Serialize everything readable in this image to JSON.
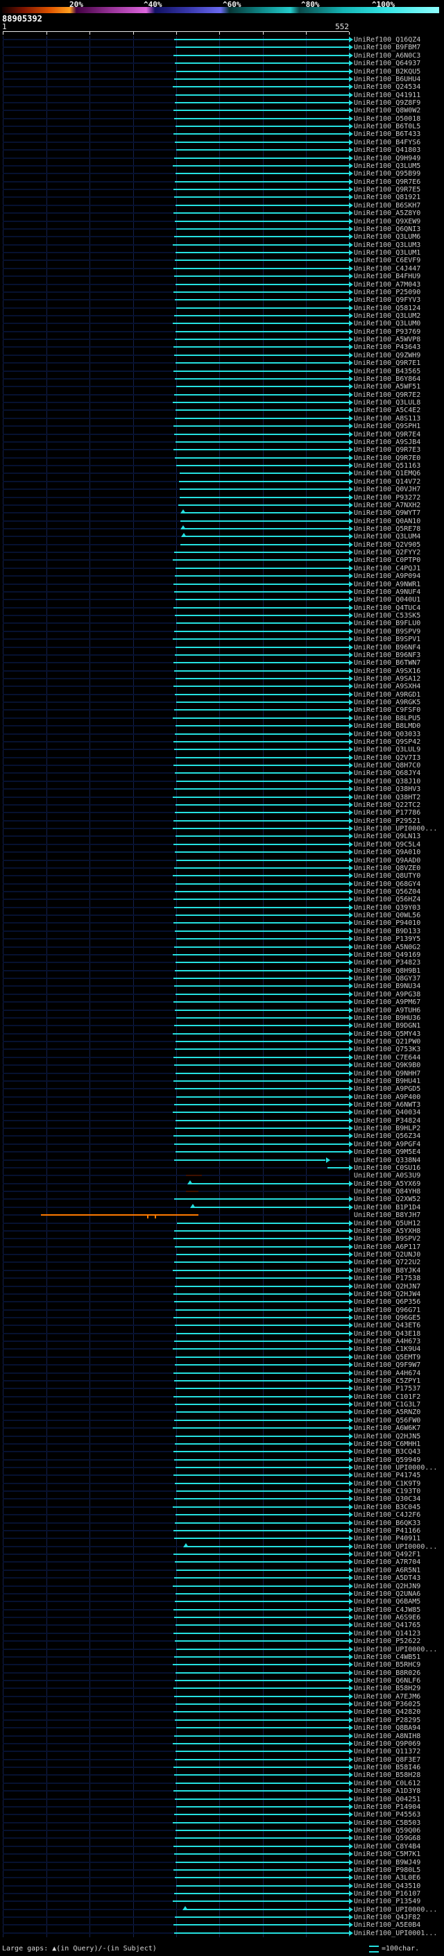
{
  "header": {
    "number": "88905392"
  },
  "legend": {
    "gaps": "Large gaps: ▲(in Query)/-(in Subject)",
    "scale": "=100char."
  },
  "colors": {
    "background": "#000000",
    "hit": "#25e0e0",
    "base_line": "#061130",
    "grid_line": "#13204e",
    "low_identity": "#401000",
    "orange": "#ff7a00",
    "label_text": "#c9c9c9",
    "ruler": "#e8e8e8",
    "legend_text": "#d8d8d8"
  },
  "chart_data": {
    "type": "alignment_overview",
    "title": "",
    "row_prefix": "UniRef100_",
    "x_axis": {
      "start": 1,
      "end": 552,
      "start_label": "1",
      "end_label": "552"
    },
    "identity_scale": {
      "labels": [
        "20%",
        "^40%",
        "^60%",
        "^80%",
        "^100%"
      ],
      "stops": [
        {
          "p": 0,
          "c": "#100000"
        },
        {
          "p": 5,
          "c": "#801500"
        },
        {
          "p": 11,
          "c": "#e05500"
        },
        {
          "p": 15.5,
          "c": "#ffa020"
        },
        {
          "p": 17,
          "c": "#400040"
        },
        {
          "p": 25,
          "c": "#993399"
        },
        {
          "p": 33,
          "c": "#dd66dd"
        },
        {
          "p": 35,
          "c": "#101060"
        },
        {
          "p": 43,
          "c": "#3a3ab0"
        },
        {
          "p": 50,
          "c": "#6a6af0"
        },
        {
          "p": 52,
          "c": "#073535"
        },
        {
          "p": 60,
          "c": "#109090"
        },
        {
          "p": 66,
          "c": "#25cccc"
        },
        {
          "p": 68,
          "c": "#0a4a4a"
        },
        {
          "p": 78,
          "c": "#15b5b5"
        },
        {
          "p": 88,
          "c": "#35e5e5"
        },
        {
          "p": 100,
          "c": "#90ffff"
        }
      ]
    },
    "rows": [
      {
        "l": "Q16QZ4",
        "s": 274
      },
      {
        "l": "B9FBM7",
        "s": 276
      },
      {
        "l": "A6N0C3",
        "s": 273
      },
      {
        "l": "Q64937",
        "s": 275
      },
      {
        "l": "B2KQU5",
        "s": 277
      },
      {
        "l": "B6UHU4",
        "s": 274
      },
      {
        "l": "Q24534",
        "s": 272
      },
      {
        "l": "Q41911",
        "s": 276
      },
      {
        "l": "Q9Z8F9",
        "s": 275
      },
      {
        "l": "Q8W0W2",
        "s": 273
      },
      {
        "l": "O50018",
        "s": 274
      },
      {
        "l": "B6T0L5",
        "s": 276
      },
      {
        "l": "B6T433",
        "s": 273
      },
      {
        "l": "B4FYS6",
        "s": 275
      },
      {
        "l": "Q41803",
        "s": 277
      },
      {
        "l": "Q9H949",
        "s": 274
      },
      {
        "l": "Q3LUM5",
        "s": 272
      },
      {
        "l": "Q95B99",
        "s": 276
      },
      {
        "l": "Q9R7E6",
        "s": 275
      },
      {
        "l": "Q9R7E5",
        "s": 273
      },
      {
        "l": "Q81921",
        "s": 274
      },
      {
        "l": "B6SKH7",
        "s": 276
      },
      {
        "l": "A5Z8Y0",
        "s": 273
      },
      {
        "l": "Q9XEW9",
        "s": 275
      },
      {
        "l": "Q6QNI3",
        "s": 277
      },
      {
        "l": "Q3LUM6",
        "s": 274
      },
      {
        "l": "Q3LUM3",
        "s": 272
      },
      {
        "l": "Q3LUM1",
        "s": 276
      },
      {
        "l": "C6EVF9",
        "s": 275
      },
      {
        "l": "C4J447",
        "s": 273
      },
      {
        "l": "B4FHU9",
        "s": 274
      },
      {
        "l": "A7M043",
        "s": 276
      },
      {
        "l": "P25090",
        "s": 273
      },
      {
        "l": "Q9FYV3",
        "s": 275
      },
      {
        "l": "Q58124",
        "s": 277
      },
      {
        "l": "Q3LUM2",
        "s": 274
      },
      {
        "l": "Q3LUM0",
        "s": 272
      },
      {
        "l": "P93769",
        "s": 276
      },
      {
        "l": "A5WVP8",
        "s": 275
      },
      {
        "l": "P43643",
        "s": 273
      },
      {
        "l": "Q9ZWH9",
        "s": 274
      },
      {
        "l": "Q9R7E1",
        "s": 276
      },
      {
        "l": "B43565",
        "s": 273
      },
      {
        "l": "B6Y864",
        "s": 275
      },
      {
        "l": "A5WF51",
        "s": 277
      },
      {
        "l": "Q9R7E2",
        "s": 274
      },
      {
        "l": "Q3LUL8",
        "s": 272
      },
      {
        "l": "A5C4E2",
        "s": 276
      },
      {
        "l": "A8S113",
        "s": 275
      },
      {
        "l": "Q9SPH1",
        "s": 273
      },
      {
        "l": "Q9R7E4",
        "s": 274
      },
      {
        "l": "A9SJB4",
        "s": 276
      },
      {
        "l": "Q9R7E3",
        "s": 273
      },
      {
        "l": "Q9R7E0",
        "s": 275
      },
      {
        "l": "Q51163",
        "s": 277
      },
      {
        "l": "Q1EMQ6",
        "s": 282
      },
      {
        "l": "Q14V72",
        "s": 281
      },
      {
        "l": "Q0VJH7",
        "s": 283
      },
      {
        "l": "P93272",
        "s": 282
      },
      {
        "l": "A7NXH2",
        "s": 280
      },
      {
        "l": "Q9WYT7",
        "s": 285,
        "m": [
          {
            "q": 288,
            "t": "tri"
          }
        ]
      },
      {
        "l": "Q0AN10",
        "s": 284
      },
      {
        "l": "Q5RE78",
        "s": 285,
        "m": [
          {
            "q": 288,
            "t": "tri"
          }
        ]
      },
      {
        "l": "Q3LUM4",
        "s": 286,
        "m": [
          {
            "q": 289,
            "t": "tri"
          }
        ]
      },
      {
        "l": "Q2V905",
        "s": 284
      },
      {
        "l": "Q2FYY2",
        "s": 274
      },
      {
        "l": "C0PTP0",
        "s": 272
      },
      {
        "l": "C4PQJ1",
        "s": 276
      },
      {
        "l": "A9P094",
        "s": 275
      },
      {
        "l": "A9NWR1",
        "s": 273
      },
      {
        "l": "A9NUF4",
        "s": 274
      },
      {
        "l": "Q040U1",
        "s": 276
      },
      {
        "l": "Q4TUC4",
        "s": 273
      },
      {
        "l": "C53SK5",
        "s": 275
      },
      {
        "l": "B9FLU0",
        "s": 277
      },
      {
        "l": "B9SPV9",
        "s": 274
      },
      {
        "l": "B9SPV1",
        "s": 272
      },
      {
        "l": "B96NF4",
        "s": 276
      },
      {
        "l": "B96NF3",
        "s": 275
      },
      {
        "l": "B6TWN7",
        "s": 273
      },
      {
        "l": "A9SX16",
        "s": 274
      },
      {
        "l": "A9SA12",
        "s": 276
      },
      {
        "l": "A9SXH4",
        "s": 273
      },
      {
        "l": "A9RGD1",
        "s": 275
      },
      {
        "l": "A9RGK5",
        "s": 277
      },
      {
        "l": "C9FSF0",
        "s": 274
      },
      {
        "l": "B8LPU5",
        "s": 272
      },
      {
        "l": "B8LMD0",
        "s": 276
      },
      {
        "l": "Q03033",
        "s": 275
      },
      {
        "l": "Q9SP42",
        "s": 273
      },
      {
        "l": "Q3LUL9",
        "s": 274
      },
      {
        "l": "Q2V7I3",
        "s": 276
      },
      {
        "l": "Q8H7C0",
        "s": 273
      },
      {
        "l": "Q68JY4",
        "s": 275
      },
      {
        "l": "Q38J10",
        "s": 277
      },
      {
        "l": "Q38HV3",
        "s": 274
      },
      {
        "l": "Q38HT2",
        "s": 272
      },
      {
        "l": "Q22TC2",
        "s": 276
      },
      {
        "l": "P17786",
        "s": 275
      },
      {
        "l": "P29521",
        "s": 273
      },
      {
        "l": "UPI0000...",
        "s": 272
      },
      {
        "l": "Q9LN13",
        "s": 276
      },
      {
        "l": "Q9C5L4",
        "s": 273
      },
      {
        "l": "Q9A010",
        "s": 275
      },
      {
        "l": "Q9AAD0",
        "s": 277
      },
      {
        "l": "Q8VZE0",
        "s": 274
      },
      {
        "l": "Q8UTY0",
        "s": 272
      },
      {
        "l": "Q68GY4",
        "s": 276
      },
      {
        "l": "Q56Z04",
        "s": 275
      },
      {
        "l": "Q56HZ4",
        "s": 273
      },
      {
        "l": "Q39Y03",
        "s": 274
      },
      {
        "l": "Q0WL56",
        "s": 276
      },
      {
        "l": "P94010",
        "s": 273
      },
      {
        "l": "B9D133",
        "s": 275
      },
      {
        "l": "P139Y5",
        "s": 277
      },
      {
        "l": "A5N0G2",
        "s": 274
      },
      {
        "l": "Q49169",
        "s": 272
      },
      {
        "l": "P34823",
        "s": 276
      },
      {
        "l": "Q8H9B1",
        "s": 275
      },
      {
        "l": "Q8GY37",
        "s": 273
      },
      {
        "l": "B9NU34",
        "s": 274
      },
      {
        "l": "A9PG38",
        "s": 276
      },
      {
        "l": "A9PM67",
        "s": 273
      },
      {
        "l": "A9TUH6",
        "s": 275
      },
      {
        "l": "B9HU36",
        "s": 277
      },
      {
        "l": "B9DGN1",
        "s": 274
      },
      {
        "l": "Q5MY43",
        "s": 272
      },
      {
        "l": "Q21PW0",
        "s": 276
      },
      {
        "l": "Q753K3",
        "s": 275
      },
      {
        "l": "C7E644",
        "s": 273
      },
      {
        "l": "Q9K9B0",
        "s": 274
      },
      {
        "l": "Q9NHH7",
        "s": 276
      },
      {
        "l": "B9HU41",
        "s": 273
      },
      {
        "l": "A9PGD5",
        "s": 275
      },
      {
        "l": "A9P400",
        "s": 277
      },
      {
        "l": "A6NWT3",
        "s": 274
      },
      {
        "l": "Q40034",
        "s": 272
      },
      {
        "l": "P34824",
        "s": 276
      },
      {
        "l": "B9HLP2",
        "s": 275
      },
      {
        "l": "Q56Z34",
        "s": 273
      },
      {
        "l": "A9PGF4",
        "s": 274
      },
      {
        "l": "Q9M5E4",
        "s": 276
      },
      {
        "l": "Q338N4",
        "s": 274,
        "e": 515
      },
      {
        "l": "C0SU16",
        "s": 518
      },
      {
        "l": "A0S3U9",
        "s": 292,
        "e": 318,
        "c": "#401000",
        "a": false
      },
      {
        "l": "A5YX69",
        "s": 296,
        "m": [
          {
            "q": 299,
            "t": "tri"
          }
        ]
      },
      {
        "l": "Q84YH8",
        "s": 292,
        "e": 312,
        "c": "#401000",
        "a": false
      },
      {
        "l": "Q2XW52",
        "s": 274
      },
      {
        "l": "B1P1D4",
        "s": 300,
        "m": [
          {
            "q": 303,
            "t": "tri"
          }
        ]
      },
      {
        "l": "B8YJH7",
        "s": 62,
        "e": 312,
        "c": "#ff7a00",
        "a": false,
        "m": [
          {
            "q": 232,
            "t": "dash"
          },
          {
            "q": 244,
            "t": "dash"
          }
        ]
      },
      {
        "l": "Q5UH12",
        "s": 278
      },
      {
        "l": "A5YXH8",
        "s": 274
      },
      {
        "l": "B9SPV2",
        "s": 273
      },
      {
        "l": "A6P117",
        "s": 275
      },
      {
        "l": "Q2UNJ0",
        "s": 277
      },
      {
        "l": "Q722U2",
        "s": 274
      },
      {
        "l": "B8YJK4",
        "s": 272
      },
      {
        "l": "P17538",
        "s": 276
      },
      {
        "l": "Q2HJN7",
        "s": 275
      },
      {
        "l": "Q2HJW4",
        "s": 273
      },
      {
        "l": "Q6P356",
        "s": 274
      },
      {
        "l": "Q96G71",
        "s": 276
      },
      {
        "l": "Q96GE5",
        "s": 273
      },
      {
        "l": "Q43ET6",
        "s": 275
      },
      {
        "l": "Q43E18",
        "s": 277
      },
      {
        "l": "A4H673",
        "s": 274
      },
      {
        "l": "C1K9U4",
        "s": 272
      },
      {
        "l": "Q5EMT9",
        "s": 276
      },
      {
        "l": "Q9F9W7",
        "s": 275
      },
      {
        "l": "A4H674",
        "s": 273
      },
      {
        "l": "C5ZPY1",
        "s": 274
      },
      {
        "l": "P17537",
        "s": 276
      },
      {
        "l": "C101F2",
        "s": 273
      },
      {
        "l": "C1G3L7",
        "s": 275
      },
      {
        "l": "A5RNZ0",
        "s": 277
      },
      {
        "l": "Q56FW0",
        "s": 274
      },
      {
        "l": "A6W6K7",
        "s": 272
      },
      {
        "l": "Q2HJN5",
        "s": 276
      },
      {
        "l": "C6MHH1",
        "s": 275
      },
      {
        "l": "B3CQ43",
        "s": 273
      },
      {
        "l": "Q59949",
        "s": 274
      },
      {
        "l": "UPI0000...",
        "s": 276
      },
      {
        "l": "P41745",
        "s": 273
      },
      {
        "l": "C1K9T9",
        "s": 275
      },
      {
        "l": "C193T0",
        "s": 277
      },
      {
        "l": "Q30C34",
        "s": 274
      },
      {
        "l": "B3C045",
        "s": 272
      },
      {
        "l": "C4J2F6",
        "s": 276
      },
      {
        "l": "B6QK33",
        "s": 275
      },
      {
        "l": "P41166",
        "s": 273
      },
      {
        "l": "P40911",
        "s": 274
      },
      {
        "l": "UPI0000...",
        "s": 290,
        "m": [
          {
            "q": 293,
            "t": "tri"
          }
        ]
      },
      {
        "l": "Q492F1",
        "s": 273
      },
      {
        "l": "A7R704",
        "s": 275
      },
      {
        "l": "A6R5N1",
        "s": 277
      },
      {
        "l": "A5DT43",
        "s": 274
      },
      {
        "l": "Q2HJN9",
        "s": 272
      },
      {
        "l": "Q2UNA6",
        "s": 276
      },
      {
        "l": "Q6BAM5",
        "s": 275
      },
      {
        "l": "C4JW85",
        "s": 273
      },
      {
        "l": "A6S9E6",
        "s": 274
      },
      {
        "l": "Q41765",
        "s": 276
      },
      {
        "l": "Q14123",
        "s": 273
      },
      {
        "l": "P52622",
        "s": 275
      },
      {
        "l": "UPI0000...",
        "s": 277
      },
      {
        "l": "C4WB51",
        "s": 274
      },
      {
        "l": "B5RHC9",
        "s": 272
      },
      {
        "l": "B8R026",
        "s": 276
      },
      {
        "l": "Q6NLF6",
        "s": 275
      },
      {
        "l": "B58H29",
        "s": 273
      },
      {
        "l": "A7EJM6",
        "s": 274
      },
      {
        "l": "P36025",
        "s": 276
      },
      {
        "l": "Q42820",
        "s": 273
      },
      {
        "l": "P28295",
        "s": 275
      },
      {
        "l": "Q8BA94",
        "s": 277
      },
      {
        "l": "A8NIH8",
        "s": 274
      },
      {
        "l": "Q9P069",
        "s": 272
      },
      {
        "l": "Q11372",
        "s": 276
      },
      {
        "l": "Q8F3E7",
        "s": 275
      },
      {
        "l": "B58I46",
        "s": 273
      },
      {
        "l": "B58H28",
        "s": 274
      },
      {
        "l": "C0L612",
        "s": 276
      },
      {
        "l": "A1D3Y8",
        "s": 273
      },
      {
        "l": "Q04251",
        "s": 275
      },
      {
        "l": "P14904",
        "s": 277
      },
      {
        "l": "P45563",
        "s": 274
      },
      {
        "l": "C5B503",
        "s": 272
      },
      {
        "l": "Q59Q06",
        "s": 276
      },
      {
        "l": "Q59G68",
        "s": 275
      },
      {
        "l": "C8Y4B4",
        "s": 273
      },
      {
        "l": "C5M7K1",
        "s": 274
      },
      {
        "l": "B9WJ49",
        "s": 276
      },
      {
        "l": "P980L5",
        "s": 273
      },
      {
        "l": "A3L0E6",
        "s": 275
      },
      {
        "l": "Q43510",
        "s": 277
      },
      {
        "l": "P16107",
        "s": 274
      },
      {
        "l": "P13549",
        "s": 272
      },
      {
        "l": "UPI0000...",
        "s": 288,
        "m": [
          {
            "q": 291,
            "t": "tri"
          }
        ]
      },
      {
        "l": "Q4JF82",
        "s": 275
      },
      {
        "l": "A5E0B4",
        "s": 273
      },
      {
        "l": "UPI0001...",
        "s": 274
      }
    ]
  }
}
